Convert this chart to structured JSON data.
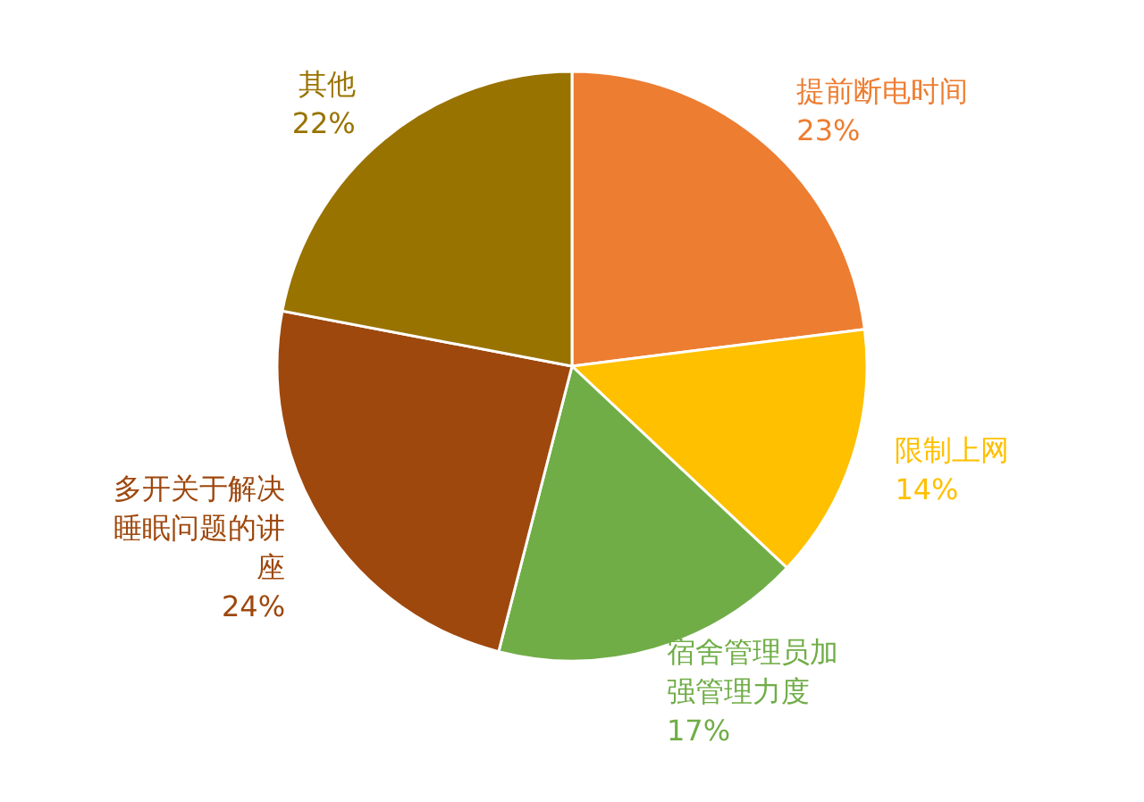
{
  "chart_data": {
    "type": "pie",
    "categories": [
      "提前断电时间",
      "限制上网",
      "宿舍管理员加强管理力度",
      "多开关于解决睡眠问题的讲座",
      "其他"
    ],
    "values": [
      23,
      14,
      17,
      24,
      22
    ],
    "colors": [
      "#ed7d31",
      "#ffc000",
      "#70ad47",
      "#9e480e",
      "#997300"
    ],
    "value_labels": [
      "23%",
      "14%",
      "17%",
      "24%",
      "22%"
    ]
  }
}
